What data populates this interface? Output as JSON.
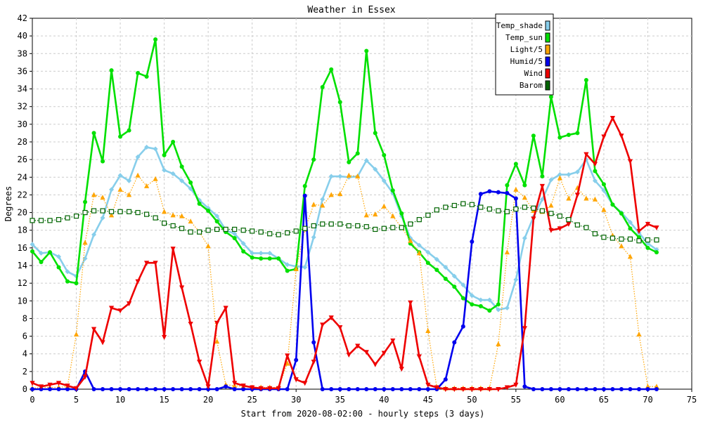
{
  "chart_data": {
    "type": "line",
    "title": "Weather in Essex",
    "xlabel": "Start from 2020-08-02:00 - hourly steps (3 days)",
    "ylabel": "Degrees",
    "xlim": [
      0,
      75
    ],
    "ylim": [
      0,
      42
    ],
    "x_ticks": [
      0,
      5,
      10,
      15,
      20,
      25,
      30,
      35,
      40,
      45,
      50,
      55,
      60,
      65,
      70,
      75
    ],
    "y_ticks": [
      0,
      2,
      4,
      6,
      8,
      10,
      12,
      14,
      16,
      18,
      20,
      22,
      24,
      26,
      28,
      30,
      32,
      34,
      36,
      38,
      40,
      42
    ],
    "grid": true,
    "legend_position": "top-right",
    "series": [
      {
        "name": "Temp_shade",
        "color": "#87ceeb",
        "style": "solid",
        "marker": "diamond",
        "values": [
          16.4,
          15.4,
          15.5,
          15,
          13.3,
          12.8,
          14.8,
          17.5,
          19.4,
          22.6,
          24.2,
          23.6,
          26.3,
          27.4,
          27.2,
          24.8,
          24.4,
          23.6,
          22.7,
          21.4,
          20.5,
          19.6,
          18,
          17.6,
          16.5,
          15.4,
          15.4,
          15.4,
          14.8,
          14.1,
          13.9,
          13.8,
          17.2,
          21.5,
          24.1,
          24.1,
          24,
          24.1,
          25.9,
          24.9,
          23.6,
          22.2,
          19.6,
          17.1,
          16.3,
          15.5,
          14.7,
          13.8,
          12.8,
          11.8,
          10.6,
          10.1,
          10.1,
          9,
          9.2,
          12.4,
          17.1,
          19.5,
          21.5,
          23.7,
          24.3,
          24.3,
          24.6,
          26,
          23.6,
          22.5,
          20.9,
          20,
          18.9,
          17.7,
          16.5,
          15.8
        ]
      },
      {
        "name": "Temp_sun",
        "color": "#00e000",
        "style": "solid",
        "marker": "circle",
        "values": [
          15.6,
          14.4,
          15.5,
          13.8,
          12.2,
          12,
          21.2,
          29,
          25.8,
          36.1,
          28.6,
          29.3,
          35.8,
          35.4,
          39.6,
          26.5,
          28,
          25.2,
          23.4,
          21,
          20.2,
          19,
          17.8,
          17.1,
          15.6,
          14.9,
          14.8,
          14.8,
          14.8,
          13.4,
          13.6,
          23,
          26,
          34.2,
          36.2,
          32.5,
          25.7,
          26.7,
          38.3,
          29,
          26.5,
          22.5,
          19.9,
          16.5,
          15.5,
          14.3,
          13.5,
          12.5,
          11.6,
          10.3,
          9.6,
          9.4,
          8.9,
          9.6,
          23.1,
          25.5,
          23.1,
          28.7,
          24.1,
          33.1,
          28.5,
          28.8,
          29,
          35,
          24.7,
          23.2,
          20.9,
          19.9,
          18.2,
          17.2,
          16,
          15.5
        ]
      },
      {
        "name": "Light/5",
        "color": "#ffa500",
        "style": "dotted",
        "marker": "triangle-up",
        "values": [
          0.1,
          0.2,
          0.2,
          0.2,
          0.3,
          6.2,
          16.6,
          22,
          21.7,
          19.7,
          22.6,
          22,
          24.2,
          23,
          23.8,
          20.1,
          19.7,
          19.6,
          19,
          17.8,
          16.2,
          5.4,
          0.5,
          0.4,
          0.3,
          0.2,
          0.2,
          0.2,
          0.2,
          2.9,
          13.6,
          18.1,
          20.9,
          20.8,
          22,
          22.1,
          24.2,
          24.1,
          19.7,
          19.8,
          20.7,
          19.6,
          18.3,
          16.8,
          15.4,
          6.6,
          0.2,
          0.1,
          0.1,
          0.1,
          0.1,
          0.1,
          0.1,
          5.1,
          15.5,
          22.6,
          21.7,
          20.2,
          20.1,
          20.8,
          23.9,
          21.6,
          22.8,
          21.6,
          21.5,
          20.3,
          17.4,
          16.2,
          15,
          6.2,
          0.3,
          0.3
        ]
      },
      {
        "name": "Humid/5",
        "color": "#0000ee",
        "style": "solid",
        "marker": "circle",
        "values": [
          0,
          0,
          0,
          0,
          0,
          0,
          2,
          0,
          0,
          0,
          0,
          0,
          0,
          0,
          0,
          0,
          0,
          0,
          0,
          0,
          0,
          0,
          0.3,
          0,
          0,
          0,
          0,
          0,
          0,
          0,
          3.3,
          21.9,
          5.3,
          0,
          0,
          0,
          0,
          0,
          0,
          0,
          0,
          0,
          0,
          0,
          0,
          0,
          0,
          1.1,
          5.3,
          7.1,
          16.7,
          22.1,
          22.4,
          22.3,
          22.2,
          21.6,
          0.3,
          0,
          0,
          0,
          0,
          0,
          0,
          0,
          0,
          0,
          0,
          0,
          0,
          0,
          0,
          0
        ]
      },
      {
        "name": "Wind",
        "color": "#ee0000",
        "style": "solid",
        "marker": "triangle-down",
        "values": [
          0.7,
          0.3,
          0.5,
          0.7,
          0.4,
          0.1,
          1.4,
          6.8,
          5.3,
          9.2,
          8.9,
          9.7,
          12.2,
          14.3,
          14.3,
          5.9,
          15.9,
          11.5,
          7.4,
          3.1,
          0.3,
          7.5,
          9.2,
          0.7,
          0.4,
          0.2,
          0.1,
          0.1,
          0.1,
          3.8,
          1.1,
          0.7,
          3.1,
          7.3,
          8.1,
          7,
          3.9,
          4.9,
          4.2,
          2.8,
          4.1,
          5.5,
          2.3,
          9.8,
          3.7,
          0.5,
          0.2,
          0,
          0,
          0,
          0,
          0,
          0,
          0,
          0.2,
          0.5,
          6.9,
          19.3,
          23,
          18,
          18.2,
          18.7,
          22,
          26.6,
          25.5,
          28.6,
          30.7,
          28.7,
          25.8,
          17.9,
          18.7,
          18.3
        ]
      },
      {
        "name": "Barom",
        "color": "#006400",
        "style": "dotted",
        "marker": "square",
        "values": [
          19.1,
          19.1,
          19.1,
          19.2,
          19.4,
          19.6,
          20,
          20.2,
          20.2,
          20.1,
          20.1,
          20.1,
          20,
          19.8,
          19.4,
          18.8,
          18.5,
          18.2,
          17.8,
          17.8,
          18,
          18.1,
          18.1,
          18.1,
          18,
          17.9,
          17.8,
          17.6,
          17.5,
          17.7,
          17.9,
          18.2,
          18.5,
          18.7,
          18.7,
          18.7,
          18.5,
          18.5,
          18.4,
          18.1,
          18.2,
          18.3,
          18.3,
          18.7,
          19.2,
          19.7,
          20.3,
          20.6,
          20.8,
          21,
          20.9,
          20.6,
          20.4,
          20.2,
          20.1,
          20.4,
          20.6,
          20.5,
          20.2,
          19.9,
          19.6,
          19.2,
          18.6,
          18.3,
          17.6,
          17.2,
          17.1,
          17,
          17,
          16.8,
          16.9,
          16.9
        ]
      }
    ]
  }
}
